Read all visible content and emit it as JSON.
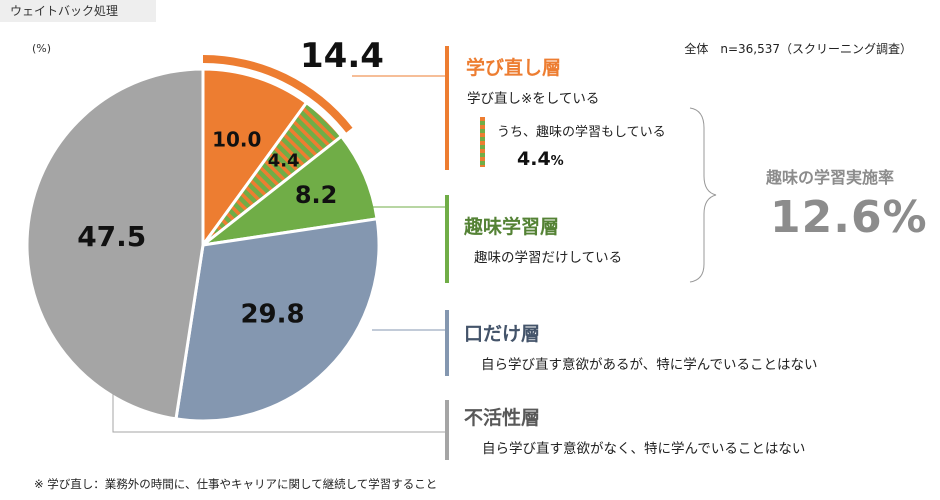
{
  "tag": "ウェイトバック処理",
  "unit": "(%)",
  "scope": "全体　n=36,537（スクリーニング調査）",
  "chart_data": {
    "type": "pie",
    "slices": [
      {
        "label": "学び直し層",
        "value": 10.0,
        "display": "10.0",
        "color": "#ed7d31"
      },
      {
        "label": "うち、趣味の学習もしている",
        "value": 4.4,
        "display": "4.4",
        "color": "#70ad47",
        "striped": true
      },
      {
        "label": "趣味学習層",
        "value": 8.2,
        "display": "8.2",
        "color": "#70ad47"
      },
      {
        "label": "口だけ層",
        "value": 29.8,
        "display": "29.8",
        "color": "#8497b0"
      },
      {
        "label": "不活性層",
        "value": 47.5,
        "display": "47.5",
        "color": "#a5a5a5"
      }
    ],
    "highlight_total": "14.4"
  },
  "segments": [
    {
      "title": "学び直し層",
      "desc": "学び直し※をしている",
      "color": "#ed7d31"
    },
    {
      "title": "趣味学習層",
      "desc": "趣味の学習だけしている",
      "color": "#548235"
    },
    {
      "title": "口だけ層",
      "desc": "自ら学び直す意欲があるが、特に学んでいることはない",
      "color": "#44546a"
    },
    {
      "title": "不活性層",
      "desc": "自ら学び直す意欲がなく、特に学んでいることはない",
      "color": "#595959"
    }
  ],
  "sub": {
    "desc": "うち、趣味の学習もしている",
    "value": "4.4",
    "unit": "%"
  },
  "hobby": {
    "label": "趣味の学習実施率",
    "value": "12.6%"
  },
  "footnote": "※ 学び直し：業務外の時間に、仕事やキャリアに関して継続して学習すること",
  "colors": {
    "bar_orange": "#ed7d31",
    "bar_green": "#70ad47",
    "bar_blue": "#8497b0",
    "bar_gray": "#a5a5a5"
  }
}
